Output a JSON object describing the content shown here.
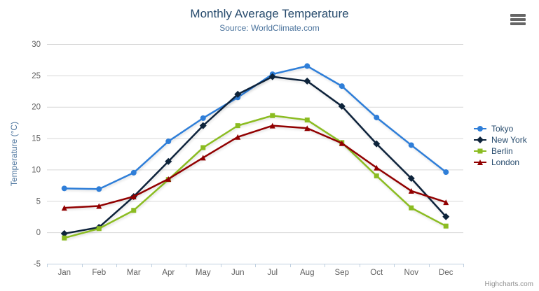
{
  "chart": {
    "title": "Monthly Average Temperature",
    "subtitle": "Source: WorldClimate.com",
    "credits": "Highcharts.com",
    "colors": {
      "title": "#274b6d",
      "subtitle": "#4d759e",
      "axis_label": "#606060",
      "axis_title": "#4d759e",
      "grid": "#d8d8d8",
      "axis_line": "#c0d0e0",
      "legend_text": "#274b6d",
      "credits": "#909090",
      "menu_icon": "#666666",
      "background": "#ffffff"
    }
  },
  "chart_data": {
    "type": "line",
    "title": "Monthly Average Temperature",
    "subtitle": "Source: WorldClimate.com",
    "xlabel": "",
    "ylabel": "Temperature (°C)",
    "ylim": [
      -5,
      30
    ],
    "yticks": [
      -5,
      0,
      5,
      10,
      15,
      20,
      25,
      30
    ],
    "grid": true,
    "legend_position": "right",
    "categories": [
      "Jan",
      "Feb",
      "Mar",
      "Apr",
      "May",
      "Jun",
      "Jul",
      "Aug",
      "Sep",
      "Oct",
      "Nov",
      "Dec"
    ],
    "series": [
      {
        "name": "Tokyo",
        "color": "#2f7ed8",
        "marker": "circle",
        "values": [
          7.0,
          6.9,
          9.5,
          14.5,
          18.2,
          21.5,
          25.2,
          26.5,
          23.3,
          18.3,
          13.9,
          9.6
        ]
      },
      {
        "name": "New York",
        "color": "#0d233a",
        "marker": "diamond",
        "values": [
          -0.2,
          0.8,
          5.7,
          11.3,
          17.0,
          22.0,
          24.8,
          24.1,
          20.1,
          14.1,
          8.6,
          2.5
        ]
      },
      {
        "name": "Berlin",
        "color": "#8bbc21",
        "marker": "square",
        "values": [
          -0.9,
          0.6,
          3.5,
          8.4,
          13.5,
          17.0,
          18.6,
          17.9,
          14.3,
          9.0,
          3.9,
          1.0
        ]
      },
      {
        "name": "London",
        "color": "#910000",
        "marker": "triangle",
        "values": [
          3.9,
          4.2,
          5.7,
          8.5,
          11.9,
          15.2,
          17.0,
          16.6,
          14.2,
          10.3,
          6.6,
          4.8
        ]
      }
    ]
  }
}
